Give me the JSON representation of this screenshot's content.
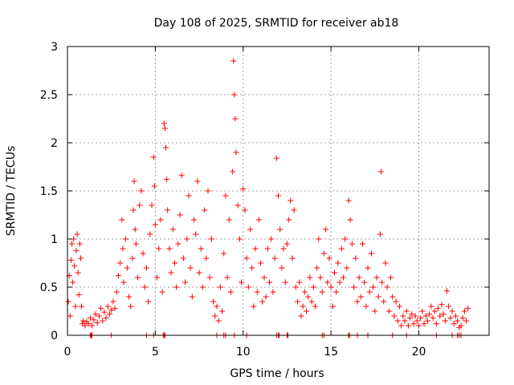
{
  "chart_data": {
    "type": "scatter",
    "title": "Day 108 of 2025, SRMTID for receiver ab18",
    "xlabel": "GPS time / hours",
    "ylabel": "SRMTID / TECUs",
    "xlim": [
      0,
      24
    ],
    "ylim": [
      0,
      3
    ],
    "xticks": [
      "0",
      "5",
      "10",
      "15",
      "20"
    ],
    "yticks": [
      "0",
      "0.5",
      "1",
      "1.5",
      "2",
      "2.5",
      "3"
    ],
    "grid": true,
    "marker": "+",
    "color": "#ff0000",
    "series": [
      {
        "name": "SRMTID",
        "points": [
          [
            0.05,
            0.35
          ],
          [
            0.1,
            0.62
          ],
          [
            0.15,
            0.2
          ],
          [
            0.2,
            0.78
          ],
          [
            0.25,
            0.95
          ],
          [
            0.3,
            0.55
          ],
          [
            0.35,
            1.0
          ],
          [
            0.4,
            0.72
          ],
          [
            0.45,
            0.3
          ],
          [
            0.5,
            0.88
          ],
          [
            0.55,
            1.05
          ],
          [
            0.6,
            0.65
          ],
          [
            0.65,
            0.42
          ],
          [
            0.7,
            0.95
          ],
          [
            0.75,
            0.8
          ],
          [
            0.8,
            0.3
          ],
          [
            0.85,
            0.12
          ],
          [
            0.9,
            0.15
          ],
          [
            1.0,
            0.1
          ],
          [
            1.1,
            0.14
          ],
          [
            1.2,
            0.12
          ],
          [
            1.3,
            0.18
          ],
          [
            1.4,
            0.1
          ],
          [
            1.5,
            0.16
          ],
          [
            1.6,
            0.22
          ],
          [
            1.7,
            0.13
          ],
          [
            1.8,
            0.2
          ],
          [
            1.9,
            0.28
          ],
          [
            2.0,
            0.15
          ],
          [
            2.1,
            0.24
          ],
          [
            2.2,
            0.18
          ],
          [
            2.3,
            0.3
          ],
          [
            2.4,
            0.22
          ],
          [
            2.5,
            0.26
          ],
          [
            2.6,
            0.35
          ],
          [
            2.7,
            0.28
          ],
          [
            2.8,
            0.45
          ],
          [
            2.9,
            0.62
          ],
          [
            3.0,
            0.75
          ],
          [
            3.1,
            1.2
          ],
          [
            3.15,
            0.9
          ],
          [
            3.2,
            0.55
          ],
          [
            3.3,
            1.0
          ],
          [
            3.4,
            0.7
          ],
          [
            3.5,
            0.4
          ],
          [
            3.6,
            0.3
          ],
          [
            3.7,
            0.8
          ],
          [
            3.75,
            1.3
          ],
          [
            3.8,
            1.6
          ],
          [
            3.85,
            1.1
          ],
          [
            3.9,
            0.95
          ],
          [
            4.0,
            0.6
          ],
          [
            4.1,
            1.35
          ],
          [
            4.2,
            1.5
          ],
          [
            4.3,
            0.85
          ],
          [
            4.4,
            0.5
          ],
          [
            4.5,
            0.7
          ],
          [
            4.6,
            0.35
          ],
          [
            4.7,
            1.05
          ],
          [
            4.8,
            1.35
          ],
          [
            4.9,
            1.85
          ],
          [
            4.95,
            1.55
          ],
          [
            5.0,
            1.15
          ],
          [
            5.1,
            0.6
          ],
          [
            5.2,
            0.9
          ],
          [
            5.3,
            1.2
          ],
          [
            5.4,
            0.45
          ],
          [
            5.5,
            2.2
          ],
          [
            5.55,
            2.15
          ],
          [
            5.6,
            1.95
          ],
          [
            5.65,
            1.62
          ],
          [
            5.7,
            1.3
          ],
          [
            5.8,
            0.9
          ],
          [
            5.9,
            0.65
          ],
          [
            6.0,
            1.1
          ],
          [
            6.1,
            0.75
          ],
          [
            6.2,
            0.5
          ],
          [
            6.3,
            0.95
          ],
          [
            6.4,
            1.25
          ],
          [
            6.5,
            1.66
          ],
          [
            6.6,
            0.8
          ],
          [
            6.7,
            0.55
          ],
          [
            6.8,
            1.0
          ],
          [
            6.9,
            1.45
          ],
          [
            7.0,
            0.7
          ],
          [
            7.1,
            0.4
          ],
          [
            7.2,
            1.2
          ],
          [
            7.3,
            1.05
          ],
          [
            7.4,
            1.6
          ],
          [
            7.5,
            0.65
          ],
          [
            7.6,
            0.9
          ],
          [
            7.7,
            0.5
          ],
          [
            7.8,
            1.3
          ],
          [
            7.9,
            0.8
          ],
          [
            8.0,
            1.5
          ],
          [
            8.1,
            0.6
          ],
          [
            8.2,
            1.0
          ],
          [
            8.3,
            0.35
          ],
          [
            8.4,
            0.2
          ],
          [
            8.5,
            0.3
          ],
          [
            8.6,
            0.15
          ],
          [
            8.7,
            0.5
          ],
          [
            8.8,
            0.25
          ],
          [
            8.9,
            0.85
          ],
          [
            9.0,
            1.45
          ],
          [
            9.1,
            0.6
          ],
          [
            9.2,
            1.2
          ],
          [
            9.3,
            0.45
          ],
          [
            9.4,
            1.7
          ],
          [
            9.45,
            2.85
          ],
          [
            9.5,
            2.5
          ],
          [
            9.55,
            2.25
          ],
          [
            9.6,
            1.9
          ],
          [
            9.7,
            1.35
          ],
          [
            9.8,
            1.0
          ],
          [
            9.9,
            0.55
          ],
          [
            10.0,
            1.52
          ],
          [
            10.1,
            1.3
          ],
          [
            10.2,
            0.8
          ],
          [
            10.3,
            0.5
          ],
          [
            10.4,
            1.1
          ],
          [
            10.5,
            0.7
          ],
          [
            10.6,
            0.3
          ],
          [
            10.7,
            0.9
          ],
          [
            10.8,
            0.45
          ],
          [
            10.9,
            1.2
          ],
          [
            11.0,
            0.75
          ],
          [
            11.1,
            0.35
          ],
          [
            11.2,
            0.6
          ],
          [
            11.3,
            0.4
          ],
          [
            11.4,
            0.9
          ],
          [
            11.5,
            0.55
          ],
          [
            11.6,
            1.0
          ],
          [
            11.7,
            0.45
          ],
          [
            11.8,
            0.8
          ],
          [
            11.9,
            1.84
          ],
          [
            12.0,
            1.45
          ],
          [
            12.1,
            1.1
          ],
          [
            12.2,
            0.7
          ],
          [
            12.3,
            0.9
          ],
          [
            12.4,
            0.55
          ],
          [
            12.5,
            0.95
          ],
          [
            12.6,
            1.2
          ],
          [
            12.7,
            1.4
          ],
          [
            12.8,
            0.8
          ],
          [
            12.9,
            1.3
          ],
          [
            13.0,
            0.5
          ],
          [
            13.1,
            0.35
          ],
          [
            13.2,
            0.55
          ],
          [
            13.3,
            0.2
          ],
          [
            13.4,
            0.3
          ],
          [
            13.5,
            0.45
          ],
          [
            13.6,
            0.25
          ],
          [
            13.7,
            0.4
          ],
          [
            13.8,
            0.6
          ],
          [
            13.9,
            0.35
          ],
          [
            14.0,
            0.5
          ],
          [
            14.1,
            0.3
          ],
          [
            14.2,
            0.7
          ],
          [
            14.3,
            1.0
          ],
          [
            14.4,
            0.6
          ],
          [
            14.5,
            0.45
          ],
          [
            14.6,
            0.85
          ],
          [
            14.7,
            1.1
          ],
          [
            14.8,
            0.55
          ],
          [
            14.9,
            0.8
          ],
          [
            15.0,
            0.5
          ],
          [
            15.1,
            0.3
          ],
          [
            15.2,
            0.65
          ],
          [
            15.3,
            0.45
          ],
          [
            15.4,
            0.75
          ],
          [
            15.5,
            0.55
          ],
          [
            15.6,
            0.9
          ],
          [
            15.7,
            0.6
          ],
          [
            15.8,
            1.0
          ],
          [
            15.9,
            0.7
          ],
          [
            16.0,
            1.4
          ],
          [
            16.1,
            1.2
          ],
          [
            16.2,
            0.95
          ],
          [
            16.3,
            0.5
          ],
          [
            16.4,
            0.8
          ],
          [
            16.5,
            0.35
          ],
          [
            16.6,
            0.6
          ],
          [
            16.7,
            0.4
          ],
          [
            16.8,
            0.95
          ],
          [
            16.9,
            0.55
          ],
          [
            17.0,
            0.3
          ],
          [
            17.1,
            0.7
          ],
          [
            17.2,
            0.45
          ],
          [
            17.3,
            0.85
          ],
          [
            17.4,
            0.5
          ],
          [
            17.5,
            0.25
          ],
          [
            17.6,
            0.6
          ],
          [
            17.7,
            0.4
          ],
          [
            17.8,
            1.05
          ],
          [
            17.85,
            1.7
          ],
          [
            17.9,
            0.55
          ],
          [
            18.0,
            0.35
          ],
          [
            18.1,
            0.75
          ],
          [
            18.2,
            0.5
          ],
          [
            18.3,
            0.25
          ],
          [
            18.4,
            0.6
          ],
          [
            18.5,
            0.4
          ],
          [
            18.6,
            0.2
          ],
          [
            18.7,
            0.35
          ],
          [
            18.8,
            0.15
          ],
          [
            18.9,
            0.3
          ],
          [
            19.0,
            0.1
          ],
          [
            19.1,
            0.2
          ],
          [
            19.2,
            0.15
          ],
          [
            19.3,
            0.25
          ],
          [
            19.4,
            0.1
          ],
          [
            19.5,
            0.18
          ],
          [
            19.6,
            0.22
          ],
          [
            19.7,
            0.12
          ],
          [
            19.8,
            0.2
          ],
          [
            19.9,
            0.15
          ],
          [
            20.0,
            0.1
          ],
          [
            20.1,
            0.18
          ],
          [
            20.2,
            0.25
          ],
          [
            20.3,
            0.12
          ],
          [
            20.4,
            0.2
          ],
          [
            20.5,
            0.15
          ],
          [
            20.6,
            0.22
          ],
          [
            20.7,
            0.3
          ],
          [
            20.8,
            0.18
          ],
          [
            20.9,
            0.25
          ],
          [
            21.0,
            0.12
          ],
          [
            21.1,
            0.28
          ],
          [
            21.2,
            0.2
          ],
          [
            21.3,
            0.32
          ],
          [
            21.4,
            0.22
          ],
          [
            21.5,
            0.15
          ],
          [
            21.6,
            0.46
          ],
          [
            21.7,
            0.3
          ],
          [
            21.8,
            0.18
          ],
          [
            21.9,
            0.25
          ],
          [
            22.0,
            0.12
          ],
          [
            22.1,
            0.2
          ],
          [
            22.2,
            0.15
          ],
          [
            22.3,
            0.08
          ],
          [
            22.4,
            0.1
          ],
          [
            22.5,
            0.18
          ],
          [
            22.6,
            0.25
          ],
          [
            22.7,
            0.15
          ],
          [
            22.8,
            0.28
          ]
        ]
      },
      {
        "name": "SRMTID (zero)",
        "points": [
          [
            1.3,
            0.0
          ],
          [
            1.35,
            0.0
          ],
          [
            1.4,
            0.0
          ],
          [
            2.5,
            0.0
          ],
          [
            4.5,
            0.0
          ],
          [
            4.9,
            0.0
          ],
          [
            5.45,
            0.0
          ],
          [
            5.5,
            0.0
          ],
          [
            5.55,
            0.0
          ],
          [
            8.5,
            0.0
          ],
          [
            8.9,
            0.0
          ],
          [
            9.0,
            0.0
          ],
          [
            9.5,
            0.0
          ],
          [
            10.2,
            0.0
          ],
          [
            11.9,
            0.0
          ],
          [
            12.0,
            0.0
          ],
          [
            12.05,
            0.0
          ],
          [
            12.5,
            0.0
          ],
          [
            12.55,
            0.0
          ],
          [
            14.5,
            0.0
          ],
          [
            14.6,
            0.0
          ],
          [
            16.0,
            0.0
          ],
          [
            16.05,
            0.0
          ],
          [
            16.5,
            0.0
          ],
          [
            17.1,
            0.0
          ],
          [
            18.5,
            0.0
          ],
          [
            19.3,
            0.0
          ],
          [
            21.0,
            0.0
          ],
          [
            21.9,
            0.0
          ],
          [
            22.2,
            0.0
          ],
          [
            22.3,
            0.0
          ],
          [
            22.4,
            0.0
          ]
        ]
      }
    ]
  }
}
